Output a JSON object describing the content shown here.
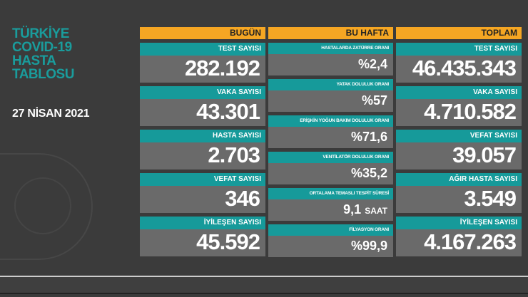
{
  "title": [
    "TÜRKİYE",
    "COVID-19",
    "HASTA",
    "TABLOSU"
  ],
  "date": "27 NİSAN 2021",
  "colors": {
    "teal": "#169a9a",
    "orange": "#f5a623",
    "panel": "#6a6a6a",
    "background": "#3b3b3b"
  },
  "today": {
    "header": "BUGÜN",
    "items": [
      {
        "label": "TEST SAYISI",
        "value": "282.192"
      },
      {
        "label": "VAKA SAYISI",
        "value": "43.301"
      },
      {
        "label": "HASTA SAYISI",
        "value": "2.703"
      },
      {
        "label": "VEFAT SAYISI",
        "value": "346"
      },
      {
        "label": "İYİLEŞEN SAYISI",
        "value": "45.592"
      }
    ]
  },
  "week": {
    "header": "BU HAFTA",
    "items": [
      {
        "label": "HASTALARDA ZATÜRRE ORANI",
        "value": "%2,4"
      },
      {
        "label": "YATAK DOLULUK ORANI",
        "value": "%57"
      },
      {
        "label": "ERİŞKİN YOĞUN BAKIM DOLULUK ORANI",
        "value": "%71,6"
      },
      {
        "label": "VENTİLATÖR DOLULUK ORANI",
        "value": "%35,2"
      },
      {
        "label": "ORTALAMA TEMASLI TESPİT SÜRESİ",
        "value": "9,1",
        "unit": "SAAT"
      },
      {
        "label": "FİLYASYON ORANI",
        "value": "%99,9"
      }
    ]
  },
  "total": {
    "header": "TOPLAM",
    "items": [
      {
        "label": "TEST SAYISI",
        "value": "46.435.343"
      },
      {
        "label": "VAKA SAYISI",
        "value": "4.710.582"
      },
      {
        "label": "VEFAT SAYISI",
        "value": "39.057"
      },
      {
        "label": "AĞIR HASTA SAYISI",
        "value": "3.549"
      },
      {
        "label": "İYİLEŞEN SAYISI",
        "value": "4.167.263"
      }
    ]
  }
}
